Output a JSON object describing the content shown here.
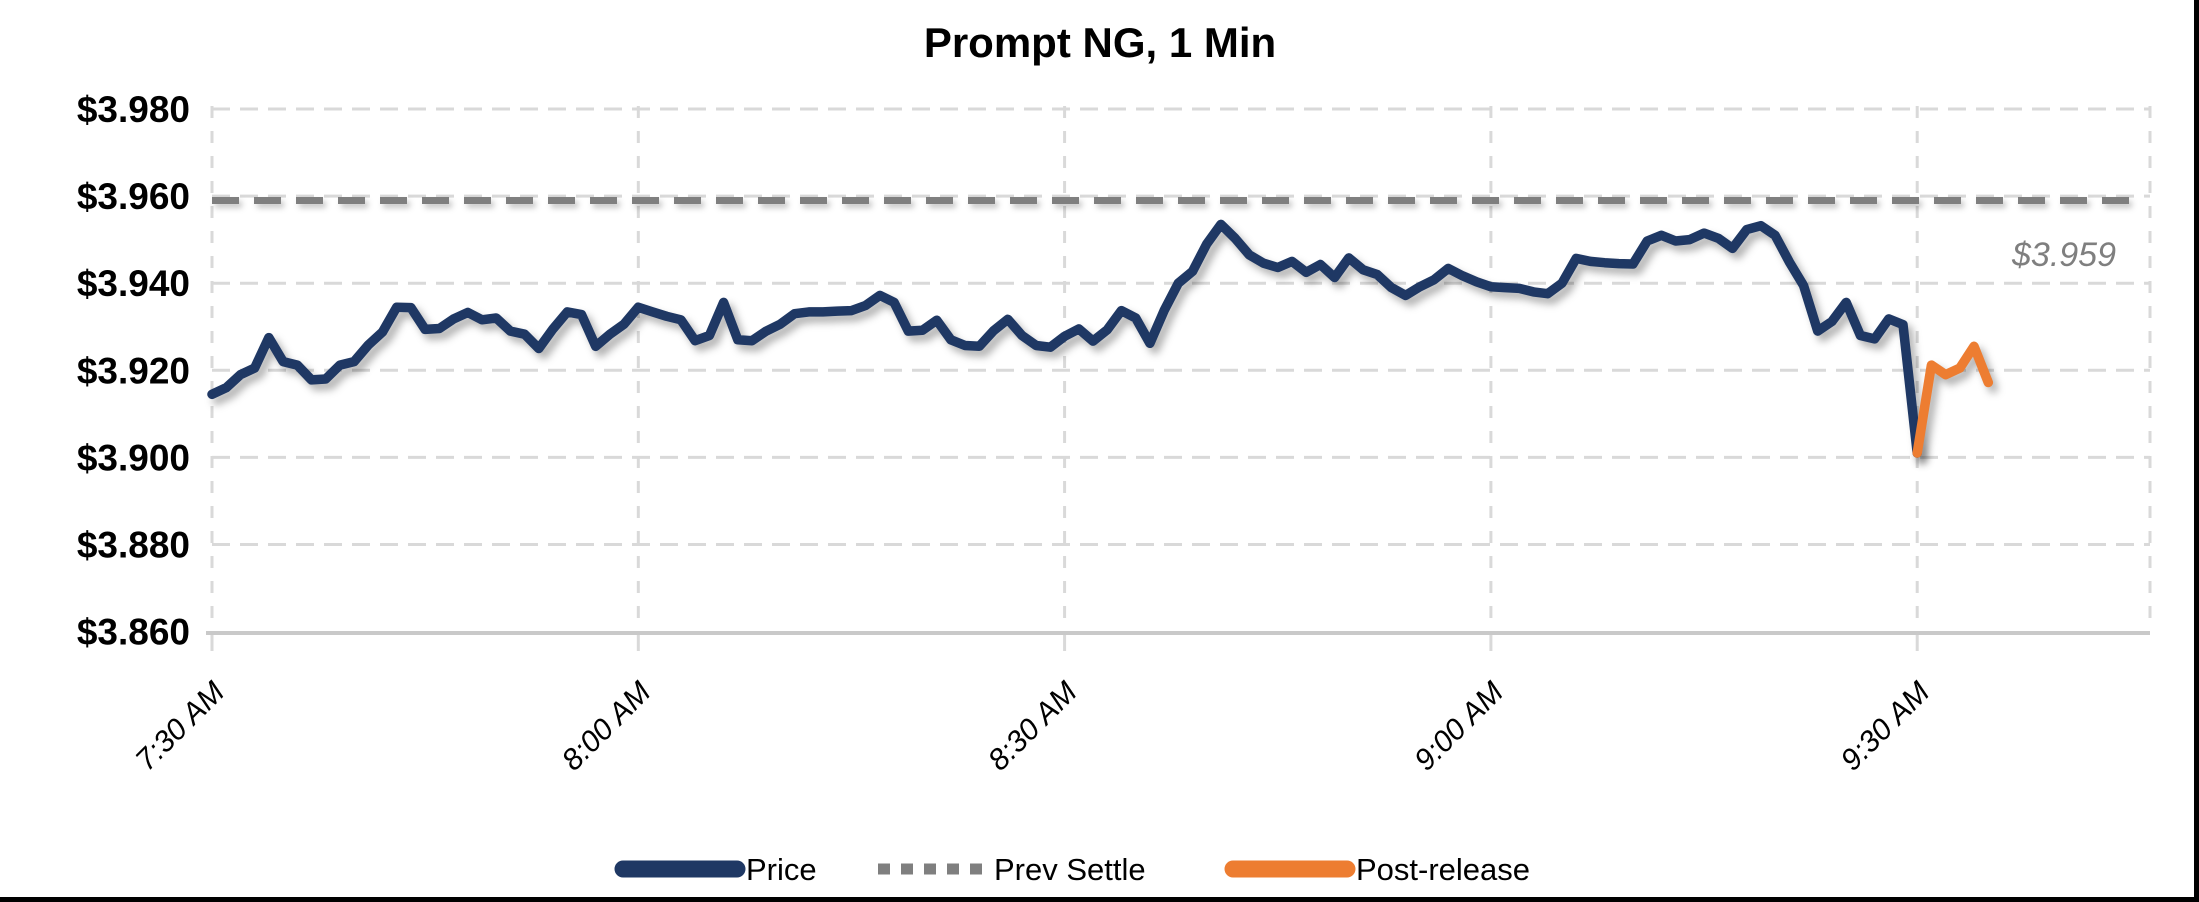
{
  "title": "Prompt NG, 1 Min",
  "y_axis": {
    "tick_labels": [
      "$3.980",
      "$3.960",
      "$3.940",
      "$3.920",
      "$3.900",
      "$3.880",
      "$3.860"
    ],
    "tick_values": [
      3.98,
      3.96,
      3.94,
      3.92,
      3.9,
      3.88,
      3.86
    ]
  },
  "x_axis": {
    "tick_labels": [
      "7:30 AM",
      "8:00 AM",
      "8:30 AM",
      "9:00 AM",
      "9:30 AM"
    ],
    "tick_minutes": [
      0,
      30,
      60,
      90,
      120
    ]
  },
  "prev_settle": {
    "value": 3.959,
    "annotation": "$3.959"
  },
  "legend": {
    "items": [
      {
        "label": "Price",
        "color": "#1f3864",
        "style": "solid"
      },
      {
        "label": "Prev Settle",
        "color": "#7f7f7f",
        "style": "dashed"
      },
      {
        "label": "Post-release",
        "color": "#ed7d31",
        "style": "solid"
      }
    ]
  },
  "colors": {
    "price": "#1f3864",
    "post_release": "#ed7d31",
    "prev_settle": "#7f7f7f",
    "gridline": "#d9d9d9",
    "axis_line": "#c9c9c9",
    "annotation": "#7f7f7f",
    "title": "#000000",
    "border": "#000000",
    "background": "#ffffff"
  },
  "chart_data": {
    "type": "line",
    "title": "Prompt NG, 1 Min",
    "xlabel": "",
    "ylabel": "",
    "x_tick_labels": [
      "7:30 AM",
      "8:00 AM",
      "8:30 AM",
      "9:00 AM",
      "9:30 AM"
    ],
    "x_start_time": "7:30 AM",
    "x_interval_minutes": 1,
    "ylim": [
      3.86,
      3.98
    ],
    "y_tick_step": 0.02,
    "grid": "dashed",
    "legend_position": "bottom",
    "prev_settle_value": 3.959,
    "series": [
      {
        "name": "Price",
        "color": "#1f3864",
        "start_minute": 0,
        "values": [
          3.9145,
          3.916,
          3.919,
          3.9205,
          3.9275,
          3.922,
          3.9212,
          3.9178,
          3.918,
          3.9212,
          3.922,
          3.9258,
          3.9288,
          3.9345,
          3.9344,
          3.9294,
          3.9296,
          3.9318,
          3.9333,
          3.9316,
          3.932,
          3.929,
          3.9283,
          3.925,
          3.9295,
          3.9334,
          3.9328,
          3.9255,
          3.9283,
          3.9306,
          3.9345,
          3.9334,
          3.9324,
          3.9316,
          3.9268,
          3.928,
          3.9356,
          3.927,
          3.9268,
          3.929,
          3.9306,
          3.933,
          3.9334,
          3.9334,
          3.9336,
          3.9337,
          3.9349,
          3.9372,
          3.9356,
          3.929,
          3.9292,
          3.9315,
          3.927,
          3.9257,
          3.9255,
          3.9291,
          3.9317,
          3.928,
          3.9257,
          3.9253,
          3.9278,
          3.9295,
          3.9267,
          3.9293,
          3.9337,
          3.932,
          3.9262,
          3.9337,
          3.94,
          3.9427,
          3.949,
          3.9535,
          3.9503,
          3.9465,
          3.9446,
          3.9436,
          3.945,
          3.9425,
          3.9443,
          3.9413,
          3.9458,
          3.9431,
          3.942,
          3.939,
          3.9372,
          3.9392,
          3.9408,
          3.9434,
          3.9417,
          3.9403,
          3.9392,
          3.939,
          3.9388,
          3.938,
          3.9376,
          3.94,
          3.9457,
          3.945,
          3.9447,
          3.9445,
          3.9444,
          3.9497,
          3.951,
          3.9497,
          3.95,
          3.9515,
          3.9503,
          3.948,
          3.9523,
          3.9532,
          3.951,
          3.9449,
          3.9395,
          3.929,
          3.9312,
          3.9356,
          3.928,
          3.9272,
          3.9318,
          3.9305,
          3.901
        ]
      },
      {
        "name": "Post-release",
        "color": "#ed7d31",
        "start_minute": 120,
        "values": [
          3.901,
          3.9212,
          3.919,
          3.9205,
          3.9255,
          3.9172
        ]
      }
    ]
  }
}
